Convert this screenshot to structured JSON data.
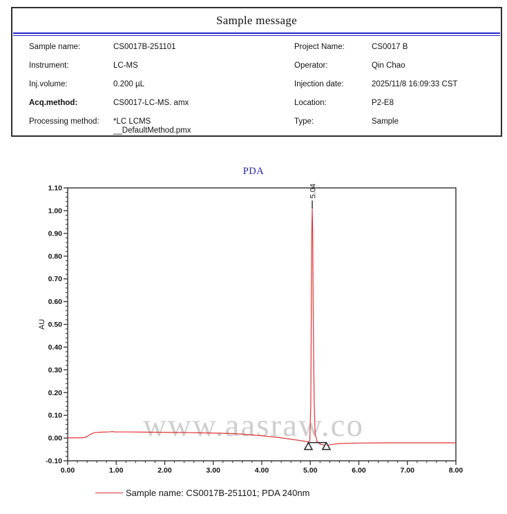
{
  "header": {
    "title": "Sample message"
  },
  "info": {
    "rows": [
      {
        "l1": "Sample name:",
        "v1": "CS0017B-251101",
        "l2": "Project Name:",
        "v2": "CS0017 B"
      },
      {
        "l1": "Instrument:",
        "v1": "LC-MS",
        "l2": "Operator:",
        "v2": "Qin Chao"
      },
      {
        "l1": "Inj.volume:",
        "v1": "0.200 µL",
        "l2": "Injection date:",
        "v2": "2025/11/8 16:09:33 CST"
      },
      {
        "l1": "Acq.method:",
        "v1": "CS0017-LC-MS.  amx",
        "l2": "Location:",
        "v2": "P2-E8"
      },
      {
        "l1": "Processing method:",
        "v1": "*LC LCMS\n__DefaultMethod.pmx",
        "l2": "Type:",
        "v2": "Sample"
      }
    ]
  },
  "watermark": "www.aasraw.co",
  "legend": {
    "label": "Sample name: CS0017B-251101;  PDA 240nm",
    "color": "#e03234"
  },
  "chart_data": {
    "type": "line",
    "title": "PDA",
    "xlabel": "",
    "ylabel": "AU",
    "xlim": [
      0.0,
      8.0
    ],
    "ylim": [
      -0.1,
      1.1
    ],
    "x_major_step": 1.0,
    "x_minor_step": 0.2,
    "y_major_step": 0.1,
    "y_minor_step": 0.02,
    "grid": false,
    "legend_position": "bottom",
    "axis_color": "#2e2e2e",
    "series": [
      {
        "name": "Sample name: CS0017B-251101;  PDA 240nm",
        "color": "#e03234",
        "x": [
          0.0,
          0.3,
          0.38,
          0.45,
          0.55,
          0.7,
          0.85,
          0.92,
          0.96,
          1.0,
          1.2,
          1.6,
          2.0,
          2.5,
          3.0,
          3.4,
          3.8,
          4.1,
          4.4,
          4.6,
          4.8,
          4.9,
          4.96,
          4.99,
          5.01,
          5.02,
          5.03,
          5.04,
          5.05,
          5.06,
          5.08,
          5.1,
          5.14,
          5.2,
          5.28,
          5.33,
          5.45,
          5.6,
          6.0,
          6.5,
          7.0,
          7.5,
          8.0
        ],
        "y": [
          0.001,
          0.001,
          0.004,
          0.014,
          0.024,
          0.026,
          0.027,
          0.029,
          0.027,
          0.027,
          0.027,
          0.026,
          0.025,
          0.024,
          0.022,
          0.02,
          0.014,
          0.008,
          0.001,
          -0.005,
          -0.011,
          -0.015,
          -0.017,
          -0.01,
          0.15,
          0.55,
          0.9,
          1.005,
          0.9,
          0.55,
          0.15,
          0.02,
          -0.015,
          -0.026,
          -0.031,
          -0.033,
          -0.028,
          -0.024,
          -0.022,
          -0.021,
          -0.021,
          -0.021,
          -0.021
        ]
      }
    ],
    "peaks": [
      {
        "rt": 5.04,
        "label": "5.04",
        "apex_au": 1.005,
        "start_x": 4.96,
        "end_x": 5.33,
        "marker_au": -0.02
      }
    ]
  }
}
